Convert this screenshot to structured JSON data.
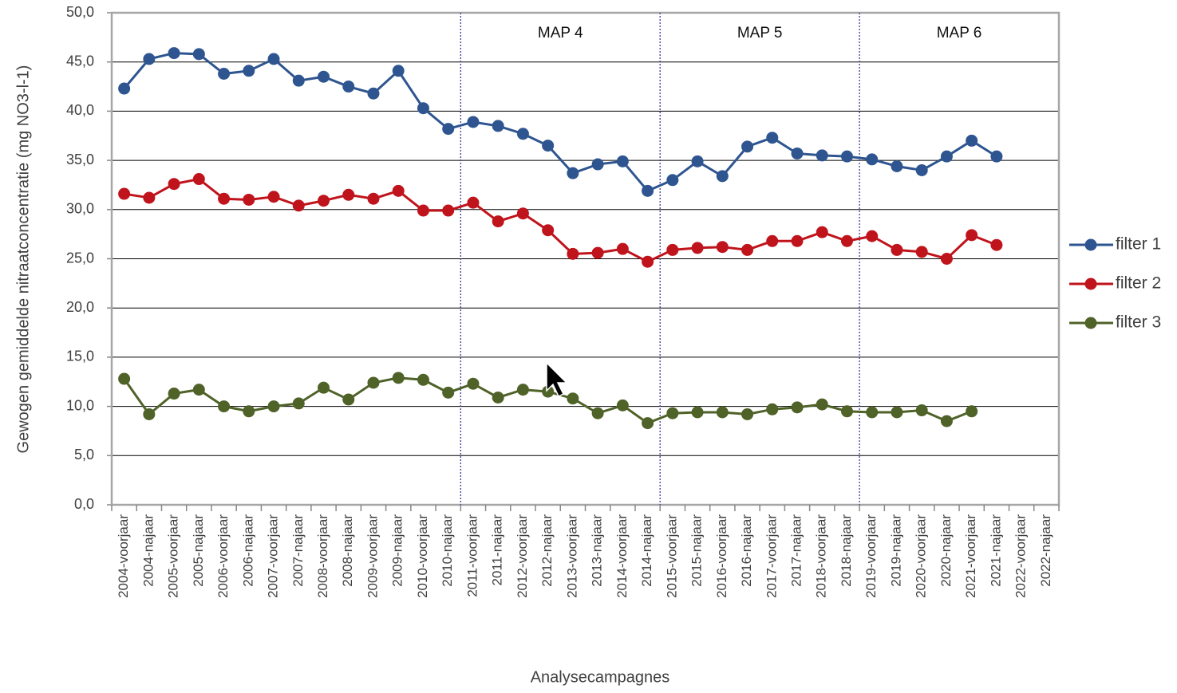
{
  "chart_data": {
    "type": "line",
    "y_label": "Gewogen gemiddelde nitraatconcentratie (mg NO3-l-1)",
    "x_label": "Analysecampagnes",
    "categories": [
      "2004-voorjaar",
      "2004-najaar",
      "2005-voorjaar",
      "2005-najaar",
      "2006-voorjaar",
      "2006-najaar",
      "2007-voorjaar",
      "2007-najaar",
      "2008-voorjaar",
      "2008-najaar",
      "2009-voorjaar",
      "2009-najaar",
      "2010-voorjaar",
      "2010-najaar",
      "2011-voorjaar",
      "2011-najaar",
      "2012-voorjaar",
      "2012-najaar",
      "2013-voorjaar",
      "2013-najaar",
      "2014-voorjaar",
      "2014-najaar",
      "2015-voorjaar",
      "2015-najaar",
      "2016-voorjaar",
      "2016-najaar",
      "2017-voorjaar",
      "2017-najaar",
      "2018-voorjaar",
      "2018-najaar",
      "2019-voorjaar",
      "2019-najaar",
      "2020-voorjaar",
      "2020-najaar",
      "2021-voorjaar",
      "2021-najaar",
      "2022-voorjaar",
      "2022-najaar"
    ],
    "series": [
      {
        "name": "filter 1",
        "color": "#2e5590",
        "values": [
          42.3,
          45.3,
          45.9,
          45.8,
          43.8,
          44.1,
          45.3,
          43.1,
          43.5,
          42.5,
          41.8,
          44.1,
          40.3,
          38.2,
          38.9,
          38.5,
          37.7,
          36.5,
          33.7,
          34.6,
          34.9,
          31.9,
          33.0,
          34.9,
          33.4,
          36.4,
          37.3,
          35.7,
          35.5,
          35.4,
          35.1,
          34.4,
          34.0,
          35.4,
          37.0,
          35.4,
          null,
          null
        ]
      },
      {
        "name": "filter 2",
        "color": "#c0141c",
        "values": [
          31.6,
          31.2,
          32.6,
          33.1,
          31.1,
          31.0,
          31.3,
          30.4,
          30.9,
          31.5,
          31.1,
          31.9,
          29.9,
          29.9,
          30.7,
          28.8,
          29.6,
          27.9,
          25.5,
          25.6,
          26.0,
          24.7,
          25.9,
          26.1,
          26.2,
          25.9,
          26.8,
          26.8,
          27.7,
          26.8,
          27.3,
          25.9,
          25.7,
          25.0,
          27.4,
          26.4,
          null,
          null
        ]
      },
      {
        "name": "filter 3",
        "color": "#4f6228",
        "values": [
          12.8,
          9.2,
          11.3,
          11.7,
          10.0,
          9.5,
          10.0,
          10.3,
          11.9,
          10.7,
          12.4,
          12.9,
          12.7,
          11.4,
          12.3,
          10.9,
          11.7,
          11.5,
          10.8,
          9.3,
          10.1,
          8.3,
          9.3,
          9.4,
          9.4,
          9.2,
          9.7,
          9.9,
          10.2,
          9.5,
          9.4,
          9.4,
          9.6,
          8.5,
          9.5,
          null,
          null,
          null
        ]
      }
    ],
    "periods": [
      {
        "label": "MAP 4",
        "start": "2011-voorjaar"
      },
      {
        "label": "MAP 5",
        "start": "2015-voorjaar"
      },
      {
        "label": "MAP 6",
        "start": "2019-voorjaar"
      }
    ],
    "ylim": [
      0,
      50
    ],
    "yticks": [
      {
        "value": 0,
        "label": "0,0"
      },
      {
        "value": 5,
        "label": "5,0"
      },
      {
        "value": 10,
        "label": "10,0"
      },
      {
        "value": 15,
        "label": "15,0"
      },
      {
        "value": 20,
        "label": "20,0"
      },
      {
        "value": 25,
        "label": "25,0"
      },
      {
        "value": 30,
        "label": "30,0"
      },
      {
        "value": 35,
        "label": "35,0"
      },
      {
        "value": 40,
        "label": "40,0"
      },
      {
        "value": 45,
        "label": "45,0"
      },
      {
        "value": 50,
        "label": "50,0"
      }
    ],
    "grid": true,
    "legend": "right"
  }
}
